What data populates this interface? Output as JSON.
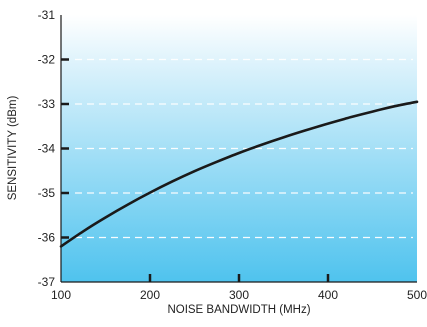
{
  "chart_data": {
    "type": "line",
    "title": "",
    "xlabel": "NOISE BANDWIDTH (MHz)",
    "ylabel": "SENSITIVITY (dBm)",
    "xlim": [
      100,
      500
    ],
    "ylim": [
      -37,
      -31
    ],
    "x_ticks": [
      100,
      200,
      300,
      400,
      500
    ],
    "x_tick_labels": [
      "100",
      "200",
      "300",
      "400",
      "500"
    ],
    "y_ticks": [
      -37,
      -36,
      -35,
      -34,
      -33,
      -32,
      -31
    ],
    "y_tick_labels": [
      "-37",
      "-36",
      "-35",
      "-34",
      "-33",
      "-32",
      "-31"
    ],
    "grid": true,
    "grid_style": "dashed horizontal",
    "background_gradient": [
      "#ffffff",
      "#4fc3ee"
    ],
    "series": [
      {
        "color": "#1a1a1a",
        "x": [
          100,
          125,
          150,
          175,
          200,
          225,
          250,
          275,
          300,
          325,
          350,
          375,
          400,
          425,
          450,
          475,
          500
        ],
        "y": [
          -36.2,
          -35.86,
          -35.55,
          -35.26,
          -34.99,
          -34.74,
          -34.51,
          -34.3,
          -34.1,
          -33.92,
          -33.75,
          -33.59,
          -33.44,
          -33.3,
          -33.17,
          -33.05,
          -32.95
        ]
      }
    ]
  }
}
